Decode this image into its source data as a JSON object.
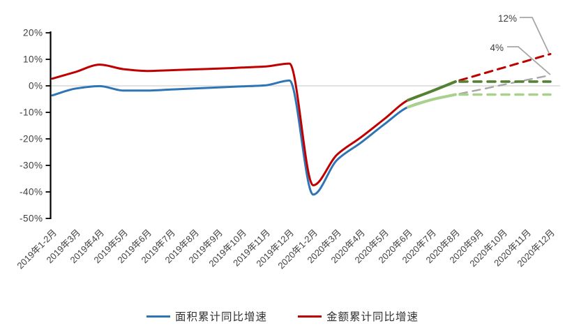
{
  "chart_data": {
    "type": "line",
    "title": "",
    "unit": "%",
    "categories": [
      "2019年1-2月",
      "2019年3月",
      "2019年4月",
      "2019年5月",
      "2019年6月",
      "2019年7月",
      "2019年8月",
      "2019年9月",
      "2019年10月",
      "2019年11月",
      "2019年12月",
      "2020年1-2月",
      "2020年3月",
      "2020年4月",
      "2020年5月",
      "2020年6月",
      "2020年7月",
      "2020年8月",
      "2020年9月",
      "2020年10月",
      "2020年11月",
      "2020年12月"
    ],
    "y_axis": {
      "min": -50,
      "max": 20,
      "ticks": [
        20,
        10,
        0,
        -10,
        -20,
        -30,
        -40,
        -50
      ],
      "tick_labels": [
        "20%",
        "10%",
        "0%",
        "-10%",
        "-20%",
        "-30%",
        "-40%",
        "-50%"
      ]
    },
    "grid": "zero-line-only",
    "series": [
      {
        "id": "area-cumulative-yoy",
        "name": "面积累计同比增速",
        "color": "#2E75B6",
        "line": "solid",
        "width": 3,
        "smooth": true,
        "values": [
          -3.6,
          -1.0,
          -0.1,
          -1.8,
          -1.8,
          -1.4,
          -1.0,
          -0.6,
          -0.2,
          0.2,
          2.0,
          -41.0,
          -28.0,
          -21.5,
          -14.5,
          -8.0,
          -5.2,
          -3.3,
          null,
          null,
          null,
          null
        ]
      },
      {
        "id": "amount-cumulative-yoy",
        "name": "金额累计同比增速",
        "color": "#C00000",
        "line": "solid",
        "width": 3,
        "smooth": true,
        "values": [
          2.7,
          5.3,
          8.0,
          6.3,
          5.6,
          5.9,
          6.2,
          6.5,
          6.9,
          7.3,
          8.4,
          -37.5,
          -26.0,
          -19.5,
          -12.5,
          -5.4,
          -2.0,
          1.6,
          null,
          null,
          null,
          null
        ]
      },
      {
        "id": "area-hold-rate-solid",
        "color": "#A9D18E",
        "line": "solid",
        "width": 4,
        "smooth": true,
        "values": [
          null,
          null,
          null,
          null,
          null,
          null,
          null,
          null,
          null,
          null,
          null,
          null,
          null,
          null,
          null,
          -8.0,
          -5.2,
          -3.3,
          null,
          null,
          null,
          null
        ]
      },
      {
        "id": "amount-hold-rate-solid",
        "color": "#548235",
        "line": "solid",
        "width": 4,
        "smooth": true,
        "values": [
          null,
          null,
          null,
          null,
          null,
          null,
          null,
          null,
          null,
          null,
          null,
          null,
          null,
          null,
          null,
          -5.4,
          -2.0,
          1.6,
          null,
          null,
          null,
          null
        ]
      },
      {
        "id": "area-forecast",
        "color": "#A6A6A6",
        "line": "dashed",
        "width": 2.4,
        "dash": "11 8",
        "values": [
          null,
          null,
          null,
          null,
          null,
          null,
          null,
          null,
          null,
          null,
          null,
          null,
          null,
          null,
          null,
          null,
          null,
          -3.3,
          -1.5,
          0.4,
          2.2,
          4.0
        ]
      },
      {
        "id": "amount-forecast",
        "color": "#C00000",
        "line": "dashed",
        "width": 3,
        "dash": "11 8",
        "values": [
          null,
          null,
          null,
          null,
          null,
          null,
          null,
          null,
          null,
          null,
          null,
          null,
          null,
          null,
          null,
          null,
          null,
          1.6,
          4.2,
          6.8,
          9.4,
          12.0
        ]
      },
      {
        "id": "area-hold-rate-dashed",
        "color": "#A9D18E",
        "line": "dashed",
        "width": 3.6,
        "dash": "11 9",
        "values": [
          null,
          null,
          null,
          null,
          null,
          null,
          null,
          null,
          null,
          null,
          null,
          null,
          null,
          null,
          null,
          null,
          null,
          -3.3,
          -3.3,
          -3.3,
          -3.3,
          -3.3
        ]
      },
      {
        "id": "amount-hold-rate-dashed",
        "color": "#548235",
        "line": "dashed",
        "width": 3.6,
        "dash": "11 9",
        "values": [
          null,
          null,
          null,
          null,
          null,
          null,
          null,
          null,
          null,
          null,
          null,
          null,
          null,
          null,
          null,
          null,
          null,
          1.6,
          1.6,
          1.6,
          1.6,
          1.6
        ]
      }
    ],
    "annotations": [
      {
        "text": "12%",
        "points_to": "amount-forecast",
        "value": 12
      },
      {
        "text": "4%",
        "points_to": "area-forecast",
        "value": 4
      }
    ],
    "annotation_line_color": "#A6A6A6",
    "axis_color": "#000000",
    "zero_line_color": "#D9D9D9",
    "legend": [
      {
        "label": "面积累计同比增速",
        "color": "#2E75B6"
      },
      {
        "label": "金额累计同比增速",
        "color": "#C00000"
      }
    ]
  }
}
